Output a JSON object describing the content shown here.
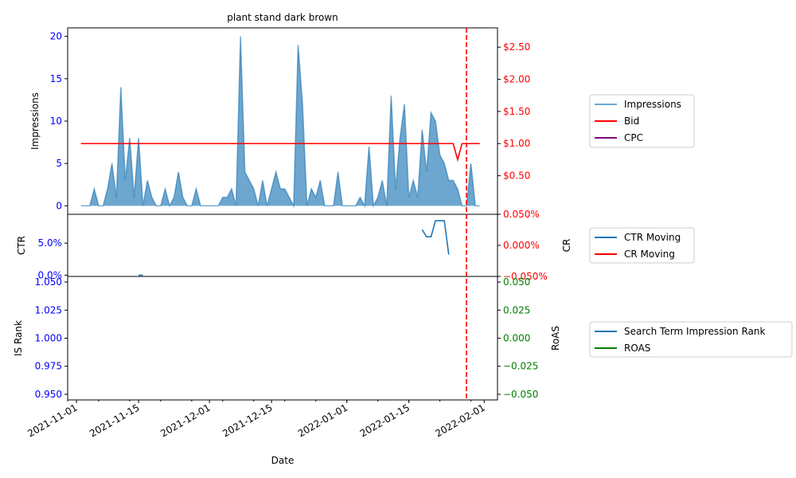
{
  "chart_data": {
    "type": "line",
    "title": "plant stand dark brown",
    "xlabel": "Date",
    "x_range": [
      "2021-10-30",
      "2022-02-04"
    ],
    "x_ticks": [
      "2021-11-01",
      "2021-11-15",
      "2021-12-01",
      "2021-12-15",
      "2022-01-01",
      "2022-01-15",
      "2022-02-01"
    ],
    "marker_date": "2022-01-28",
    "colors": {
      "impressions": "#1f77b4",
      "bid": "#ff0000",
      "cpc": "#800080",
      "ctr": "#1f77b4",
      "cr": "#ff0000",
      "is_rank": "#1f77b4",
      "roas": "#008000",
      "left_ticks": "#0000ff",
      "right_ticks_top": "#ff0000",
      "right_ticks_bottom": "#008000",
      "marker": "#ff0000"
    },
    "panels": [
      {
        "id": "impressions",
        "ylabel": "Impressions",
        "ylabel_right": "",
        "ylim": [
          -1,
          21
        ],
        "yticks": [
          {
            "v": 0,
            "label": "0"
          },
          {
            "v": 5,
            "label": "5"
          },
          {
            "v": 10,
            "label": "10"
          },
          {
            "v": 15,
            "label": "15"
          },
          {
            "v": 20,
            "label": "20"
          }
        ],
        "ylim_right": [
          -0.1,
          2.8
        ],
        "yticks_right": [
          {
            "v": 0.5,
            "label": "$0.50"
          },
          {
            "v": 1.0,
            "label": "$1.00"
          },
          {
            "v": 1.5,
            "label": "$1.50"
          },
          {
            "v": 2.0,
            "label": "$2.00"
          },
          {
            "v": 2.5,
            "label": "$2.50"
          }
        ],
        "legend": [
          "Impressions",
          "Bid",
          "CPC"
        ],
        "series": [
          {
            "name": "Impressions",
            "kind": "area",
            "axis": "left",
            "points": [
              [
                "2021-11-02",
                0
              ],
              [
                "2021-11-03",
                0
              ],
              [
                "2021-11-04",
                0
              ],
              [
                "2021-11-05",
                2
              ],
              [
                "2021-11-06",
                0
              ],
              [
                "2021-11-07",
                0
              ],
              [
                "2021-11-08",
                2
              ],
              [
                "2021-11-09",
                5
              ],
              [
                "2021-11-10",
                1
              ],
              [
                "2021-11-11",
                14
              ],
              [
                "2021-11-12",
                3
              ],
              [
                "2021-11-13",
                8
              ],
              [
                "2021-11-14",
                1
              ],
              [
                "2021-11-15",
                8
              ],
              [
                "2021-11-16",
                0
              ],
              [
                "2021-11-17",
                3
              ],
              [
                "2021-11-18",
                1
              ],
              [
                "2021-11-19",
                0
              ],
              [
                "2021-11-20",
                0
              ],
              [
                "2021-11-21",
                2
              ],
              [
                "2021-11-22",
                0
              ],
              [
                "2021-11-23",
                1
              ],
              [
                "2021-11-24",
                4
              ],
              [
                "2021-11-25",
                1
              ],
              [
                "2021-11-26",
                0
              ],
              [
                "2021-11-27",
                0
              ],
              [
                "2021-11-28",
                2
              ],
              [
                "2021-11-29",
                0
              ],
              [
                "2021-11-30",
                0
              ],
              [
                "2021-12-01",
                0
              ],
              [
                "2021-12-02",
                0
              ],
              [
                "2021-12-03",
                0
              ],
              [
                "2021-12-04",
                1
              ],
              [
                "2021-12-05",
                1
              ],
              [
                "2021-12-06",
                2
              ],
              [
                "2021-12-07",
                0
              ],
              [
                "2021-12-08",
                20
              ],
              [
                "2021-12-09",
                4
              ],
              [
                "2021-12-10",
                3
              ],
              [
                "2021-12-11",
                2
              ],
              [
                "2021-12-12",
                0
              ],
              [
                "2021-12-13",
                3
              ],
              [
                "2021-12-14",
                0
              ],
              [
                "2021-12-15",
                2
              ],
              [
                "2021-12-16",
                4
              ],
              [
                "2021-12-17",
                2
              ],
              [
                "2021-12-18",
                2
              ],
              [
                "2021-12-19",
                1
              ],
              [
                "2021-12-20",
                0
              ],
              [
                "2021-12-21",
                19
              ],
              [
                "2021-12-22",
                12
              ],
              [
                "2021-12-23",
                0
              ],
              [
                "2021-12-24",
                2
              ],
              [
                "2021-12-25",
                1
              ],
              [
                "2021-12-26",
                3
              ],
              [
                "2021-12-27",
                0
              ],
              [
                "2021-12-28",
                0
              ],
              [
                "2021-12-29",
                0
              ],
              [
                "2021-12-30",
                4
              ],
              [
                "2021-12-31",
                0
              ],
              [
                "2022-01-01",
                0
              ],
              [
                "2022-01-02",
                0
              ],
              [
                "2022-01-03",
                0
              ],
              [
                "2022-01-04",
                1
              ],
              [
                "2022-01-05",
                0
              ],
              [
                "2022-01-06",
                7
              ],
              [
                "2022-01-07",
                0
              ],
              [
                "2022-01-08",
                1
              ],
              [
                "2022-01-09",
                3
              ],
              [
                "2022-01-10",
                0
              ],
              [
                "2022-01-11",
                13
              ],
              [
                "2022-01-12",
                2
              ],
              [
                "2022-01-13",
                8
              ],
              [
                "2022-01-14",
                12
              ],
              [
                "2022-01-15",
                1
              ],
              [
                "2022-01-16",
                3
              ],
              [
                "2022-01-17",
                1
              ],
              [
                "2022-01-18",
                9
              ],
              [
                "2022-01-19",
                4
              ],
              [
                "2022-01-20",
                11
              ],
              [
                "2022-01-21",
                10
              ],
              [
                "2022-01-22",
                6
              ],
              [
                "2022-01-23",
                5
              ],
              [
                "2022-01-24",
                3
              ],
              [
                "2022-01-25",
                3
              ],
              [
                "2022-01-26",
                2
              ],
              [
                "2022-01-27",
                0
              ],
              [
                "2022-01-28",
                0
              ],
              [
                "2022-01-29",
                5
              ],
              [
                "2022-01-30",
                0
              ],
              [
                "2022-01-31",
                0
              ]
            ]
          },
          {
            "name": "Bid",
            "kind": "line",
            "axis": "right",
            "points": [
              [
                "2021-11-02",
                1.0
              ],
              [
                "2022-01-25",
                1.0
              ],
              [
                "2022-01-26",
                0.75
              ],
              [
                "2022-01-27",
                1.0
              ],
              [
                "2022-01-31",
                1.0
              ]
            ]
          },
          {
            "name": "CPC",
            "kind": "line",
            "axis": "right",
            "points": []
          }
        ]
      },
      {
        "id": "ctr",
        "ylabel": "CTR",
        "ylabel_right": "CR",
        "ylim": [
          -0.2,
          9.5
        ],
        "yticks": [
          {
            "v": 0,
            "label": "0.0%"
          },
          {
            "v": 5,
            "label": "5.0%"
          }
        ],
        "ylim_right": [
          -0.05,
          0.05
        ],
        "yticks_right": [
          {
            "v": -0.05,
            "label": "−0.050%"
          },
          {
            "v": 0.0,
            "label": "0.000%"
          },
          {
            "v": 0.05,
            "label": "0.050%"
          }
        ],
        "legend": [
          "CTR Moving",
          "CR Moving"
        ],
        "series": [
          {
            "name": "CTR Moving",
            "kind": "line",
            "axis": "left",
            "segments": [
              [
                [
                  "2021-11-15",
                  0.0
                ],
                [
                  "2021-11-16",
                  0.0
                ]
              ],
              [
                [
                  "2022-01-18",
                  7.1
                ],
                [
                  "2022-01-19",
                  6.0
                ],
                [
                  "2022-01-20",
                  6.0
                ],
                [
                  "2022-01-21",
                  8.5
                ],
                [
                  "2022-01-22",
                  8.5
                ],
                [
                  "2022-01-23",
                  8.5
                ],
                [
                  "2022-01-24",
                  3.2
                ]
              ]
            ]
          },
          {
            "name": "CR Moving",
            "kind": "line",
            "axis": "right",
            "segments": []
          }
        ]
      },
      {
        "id": "isrank",
        "ylabel": "IS Rank",
        "ylabel_right": "RoAS",
        "ylim": [
          0.945,
          1.055
        ],
        "yticks": [
          {
            "v": 0.95,
            "label": "0.950"
          },
          {
            "v": 0.975,
            "label": "0.975"
          },
          {
            "v": 1.0,
            "label": "1.000"
          },
          {
            "v": 1.025,
            "label": "1.025"
          },
          {
            "v": 1.05,
            "label": "1.050"
          }
        ],
        "ylim_right": [
          -0.055,
          0.055
        ],
        "yticks_right": [
          {
            "v": -0.05,
            "label": "−0.050"
          },
          {
            "v": -0.025,
            "label": "−0.025"
          },
          {
            "v": 0.0,
            "label": "0.000"
          },
          {
            "v": 0.025,
            "label": "0.025"
          },
          {
            "v": 0.05,
            "label": "0.050"
          }
        ],
        "legend": [
          "Search Term Impression Rank",
          "ROAS"
        ],
        "series": [
          {
            "name": "Search Term Impression Rank",
            "kind": "line",
            "axis": "left",
            "segments": []
          },
          {
            "name": "ROAS",
            "kind": "line",
            "axis": "right",
            "segments": []
          }
        ]
      }
    ]
  }
}
